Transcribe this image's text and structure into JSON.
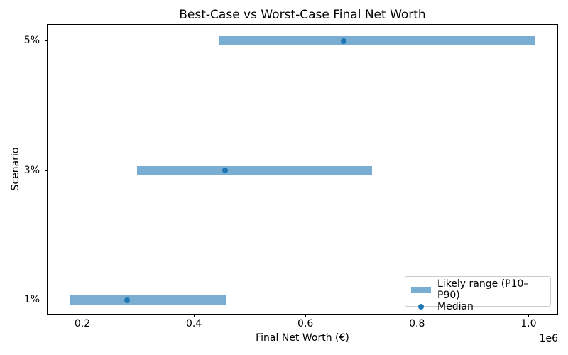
{
  "chart_data": {
    "type": "bar",
    "subtype": "horizontal_range_bars",
    "title": "Best-Case vs Worst-Case Final Net Worth",
    "xlabel": "Final Net Worth (€)",
    "ylabel": "Scenario",
    "x_offset_label": "1e6",
    "categories": [
      "1%",
      "3%",
      "5%"
    ],
    "category_order": "bottom_to_top",
    "series": [
      {
        "name": "Likely range (P10–P90)",
        "role": "range-bar",
        "p10": [
          179000,
          298000,
          446000
        ],
        "p90": [
          458000,
          719000,
          1012000
        ]
      },
      {
        "name": "Median",
        "role": "point",
        "values": [
          280000,
          456000,
          669000
        ]
      }
    ],
    "xlim": [
      137000,
      1053000
    ],
    "x_ticks": [
      200000,
      400000,
      600000,
      800000,
      1000000
    ],
    "x_tick_labels": [
      "0.2",
      "0.4",
      "0.6",
      "0.8",
      "1.0"
    ],
    "ylim_units": [
      -0.11,
      2.13
    ],
    "grid": false,
    "legend_position": "lower right",
    "colors": {
      "primary_blue": "#1f77b4",
      "bar_alpha": 0.6,
      "spine": "#000000",
      "legend_border": "#cccccc",
      "background": "#ffffff"
    }
  }
}
